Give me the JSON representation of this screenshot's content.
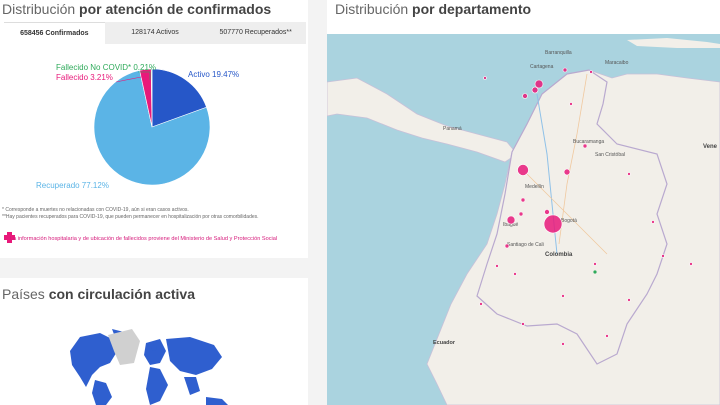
{
  "left_panel": {
    "title_light": "Distribución",
    "title_bold": "por atención de confirmados",
    "tabs": [
      {
        "label": "658456 Confirmados",
        "active": true
      },
      {
        "label": "128174 Activos",
        "active": false
      },
      {
        "label": "507770 Recuperados**",
        "active": false
      }
    ],
    "chart_data": {
      "type": "pie",
      "slices": [
        {
          "name": "Activo",
          "value": 19.47,
          "label": "Activo 19.47%",
          "color": "#2657c8"
        },
        {
          "name": "Recuperado",
          "value": 77.12,
          "label": "Recuperado 77.12%",
          "color": "#5bb4e6"
        },
        {
          "name": "Fallecido",
          "value": 3.21,
          "label": "Fallecido 3.21%",
          "color": "#e8197a"
        },
        {
          "name": "Fallecido No COVID*",
          "value": 0.21,
          "label": "Fallecido No COVID* 0.21%",
          "color": "#2eaa5a"
        }
      ],
      "legend": "labels-around"
    },
    "notes": [
      "* Corresponde a muertes no relacionadas con COVID-19, aún si eran casos activos.",
      "**Hay pacientes recuperados para COVID-19, que pueden permanecer en hospitalización por otras comorbilidades."
    ],
    "info_text": "La información hospitalaria y de ubicación de fallecidos proviene del Ministerio de Salud y Protección Social",
    "colors": {
      "accent": "#e8197a",
      "info_icon": "first-aid-icon"
    }
  },
  "countries_panel": {
    "title_light": "Países",
    "title_bold": "con circulación activa"
  },
  "right_panel": {
    "title_light": "Distribución",
    "title_bold": "por departamento",
    "map_labels": [
      "Barranquilla",
      "Cartagena",
      "Maracaibo",
      "Panamá",
      "Bucaramanga",
      "San Cristóbal",
      "Medellín",
      "Bogotá",
      "Ibagué",
      "Santiago de Cali",
      "Colombia",
      "Ecuador",
      "Vene"
    ]
  }
}
